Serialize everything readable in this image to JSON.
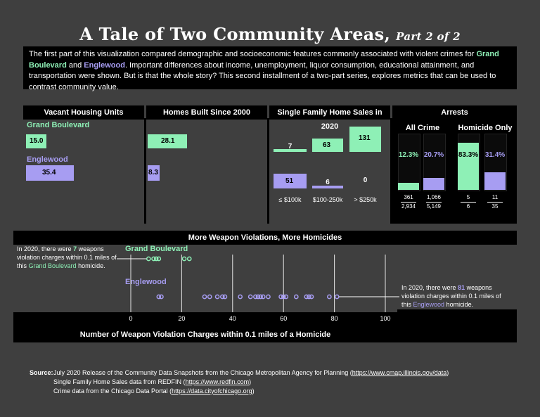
{
  "title": {
    "main": "A Tale of Two Community Areas,",
    "sub": "Part 2 of 2"
  },
  "intro": {
    "p1": "The first part of this visualization compared demographic and socioeconomic features commonly associated with violent crimes for ",
    "gb": "Grand Boulevard",
    "and": " and ",
    "eng": "Englewood",
    "p2": ".  Important differences about income, unemployment, liquor consumption, educational attainment, and transportation were shown.  But is that the whole story?  This second installment of a two-part series, explores metrics that can be used to contrast community value."
  },
  "colors": {
    "grand_boulevard": "#8ef0b6",
    "englewood": "#a79df2"
  },
  "areas": {
    "gb": "Grand Boulevard",
    "eng": "Englewood"
  },
  "panels": {
    "vacant": "Vacant Housing Units",
    "homes_built": "Homes Built Since 2000",
    "sales": "Single Family Home Sales in 2020",
    "arrests": "Arrests",
    "all_crime": "All Crime",
    "homicide_only": "Homicide Only"
  },
  "weapons": {
    "header": "More Weapon Violations, More Homicides",
    "gb_note_a": "In 2020, there were ",
    "gb_note_num": "7",
    "gb_note_b": " weapons violation charges within 0.1 miles of this ",
    "gb_note_c": " homicide.",
    "eng_note_a": "In 2020, there were ",
    "eng_note_num": "81",
    "eng_note_b": " weapons violation charges within 0.1 miles of this ",
    "eng_note_c": " homicide.",
    "xlabel": "Number of Weapon Violation Charges within 0.1 miles of a Homicide"
  },
  "source": {
    "label": "Source:",
    "l1a": "July 2020 Release of the Community Data Snapshots from the Chicago Metropolitan Agency for Planning (",
    "l1u": "https://www.cmap.illinois.gov/data",
    "l1b": ")",
    "l2a": "Single Family Home Sales data from REDFIN (",
    "l2u": "https://www.redfin.com",
    "l2b": ")",
    "l3a": "Crime data from the Chicago Data Portal (",
    "l3u": "https://data.cityofchicago.org",
    "l3b": ")"
  },
  "chart_data": [
    {
      "type": "bar",
      "title": "Vacant Housing Units",
      "categories": [
        "Grand Boulevard",
        "Englewood"
      ],
      "values": [
        15.0,
        35.4
      ],
      "labels": [
        "15.0",
        "35.4"
      ]
    },
    {
      "type": "bar",
      "title": "Homes Built Since 2000",
      "categories": [
        "Grand Boulevard",
        "Englewood"
      ],
      "values": [
        28.1,
        8.3
      ],
      "labels": [
        "28.1",
        "8.3"
      ]
    },
    {
      "type": "bar",
      "title": "Single Family Home Sales in 2020",
      "categories": [
        "≤ $100k",
        "$100-250k",
        "> $250k"
      ],
      "series": [
        {
          "name": "Grand Boulevard",
          "values": [
            7,
            63,
            131
          ]
        },
        {
          "name": "Englewood",
          "values": [
            51,
            6,
            0
          ]
        }
      ]
    },
    {
      "type": "bar",
      "title": "Arrests",
      "groups": [
        {
          "name": "All Crime",
          "items": [
            {
              "area": "Grand Boulevard",
              "pct": 12.3,
              "label": "12.3%",
              "num": "361",
              "den": "2,934"
            },
            {
              "area": "Englewood",
              "pct": 20.7,
              "label": "20.7%",
              "num": "1,066",
              "den": "5,149"
            }
          ]
        },
        {
          "name": "Homicide Only",
          "items": [
            {
              "area": "Grand Boulevard",
              "pct": 83.3,
              "label": "83.3%",
              "num": "5",
              "den": "6"
            },
            {
              "area": "Englewood",
              "pct": 31.4,
              "label": "31.4%",
              "num": "11",
              "den": "35"
            }
          ]
        }
      ]
    },
    {
      "type": "scatter",
      "title": "More Weapon Violations, More Homicides",
      "xlabel": "Number of Weapon Violation Charges within 0.1 miles of a Homicide",
      "xlim": [
        0,
        100
      ],
      "xticks": [
        0,
        20,
        40,
        60,
        80,
        100
      ],
      "series": [
        {
          "name": "Grand Boulevard",
          "x": [
            7,
            9,
            10,
            11,
            21,
            23
          ],
          "highlight": 7
        },
        {
          "name": "Englewood",
          "x": [
            11,
            12,
            29,
            31,
            34,
            36,
            37,
            43,
            47,
            49,
            50,
            51,
            52,
            54,
            59,
            60,
            61,
            65,
            69,
            70,
            71,
            78,
            81
          ],
          "highlight": 81
        }
      ]
    }
  ]
}
